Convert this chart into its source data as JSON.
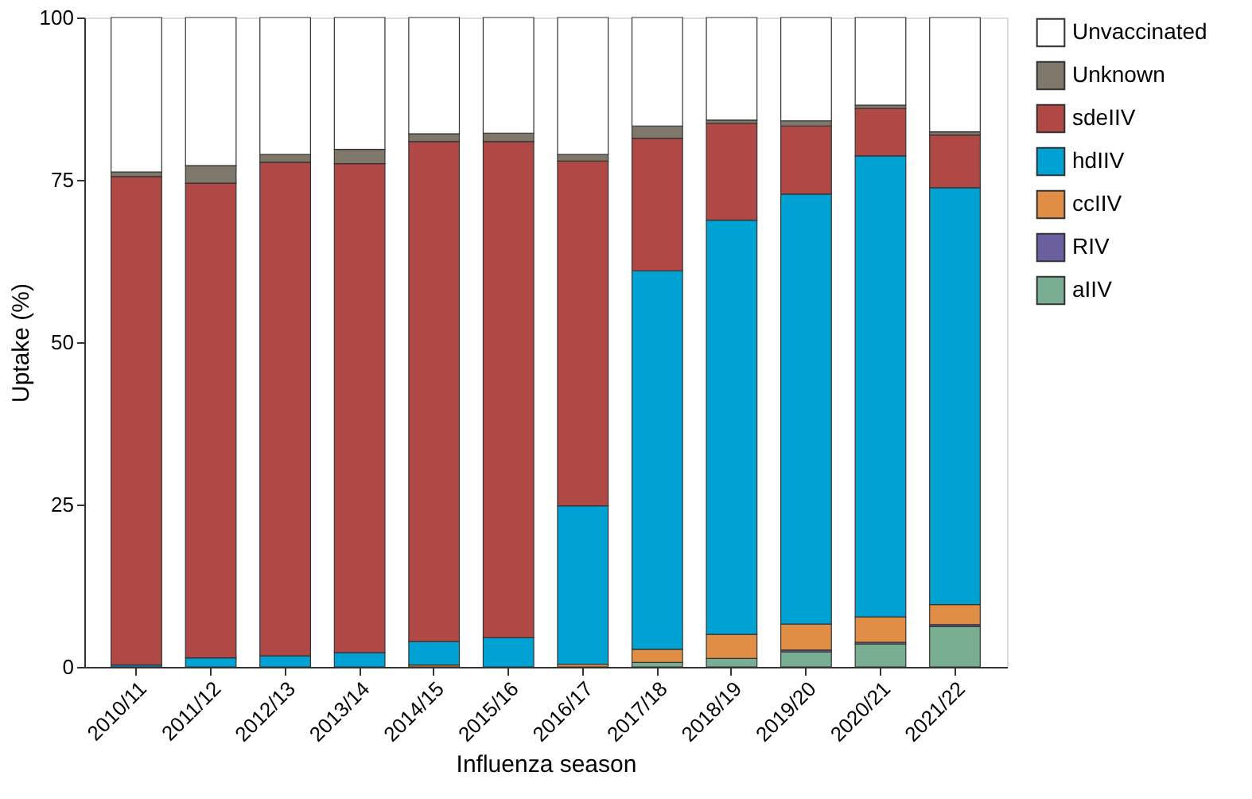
{
  "chart_data": {
    "type": "bar",
    "stacked": true,
    "xlabel": "Influenza season",
    "ylabel": "Uptake (%)",
    "categories": [
      "2010/11",
      "2011/12",
      "2012/13",
      "2013/14",
      "2014/15",
      "2015/16",
      "2016/17",
      "2017/18",
      "2018/19",
      "2019/20",
      "2020/21",
      "2021/22"
    ],
    "series": [
      {
        "name": "aIIV",
        "color": "#79ae93",
        "values": [
          0,
          0,
          0,
          0,
          0,
          0,
          0,
          0.7,
          1.3,
          2.3,
          3.5,
          6.2
        ]
      },
      {
        "name": "RIV",
        "color": "#6b5fa0",
        "values": [
          0,
          0,
          0,
          0,
          0,
          0,
          0,
          0,
          null,
          0.3,
          0.3,
          0.3
        ]
      },
      {
        "name": "ccIIV",
        "color": "#e08e45",
        "values": [
          0,
          0,
          0,
          0,
          0.3,
          null,
          0.4,
          2.0,
          3.7,
          4.0,
          3.9,
          3.1
        ]
      },
      {
        "name": "hdIIV",
        "color": "#00a2d4",
        "values": [
          0.3,
          1.4,
          1.7,
          2.2,
          3.6,
          4.5,
          24.4,
          58.3,
          63.8,
          66.2,
          71.0,
          64.2
        ]
      },
      {
        "name": "sdeIIV",
        "color": "#b04846",
        "values": [
          75.2,
          73.1,
          76.0,
          75.3,
          77.0,
          76.4,
          53.1,
          20.4,
          14.9,
          10.5,
          7.3,
          8.1
        ]
      },
      {
        "name": "Unknown",
        "color": "#7f776a",
        "values": [
          0.7,
          2.7,
          1.2,
          2.2,
          1.2,
          1.3,
          1.0,
          1.9,
          0.5,
          0.8,
          0.5,
          0.5
        ]
      },
      {
        "name": "Unvaccinated",
        "color": "#ffffff",
        "values": [
          23.8,
          22.8,
          21.1,
          20.3,
          17.9,
          17.8,
          21.1,
          16.7,
          15.8,
          15.9,
          13.5,
          17.6
        ]
      }
    ],
    "ylim": [
      0,
      100
    ],
    "yticks": [
      0,
      25,
      50,
      75,
      100
    ],
    "grid": false,
    "legend": "right"
  }
}
